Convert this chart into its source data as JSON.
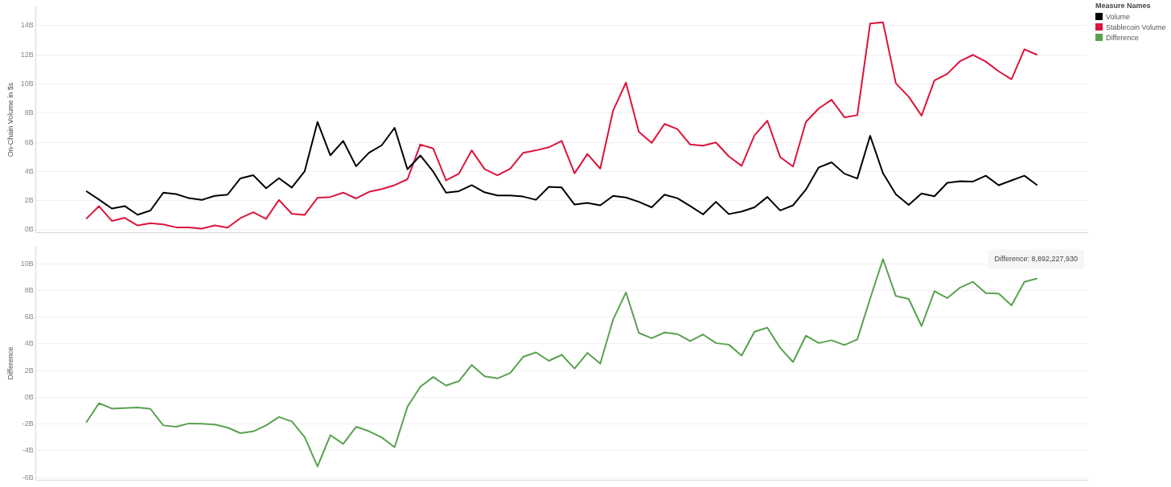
{
  "chart_data": [
    {
      "type": "line",
      "ylabel": "On-Chain Volume in $s",
      "legend_title": "Measure Names",
      "legend": "right",
      "grid": "y",
      "categories": [
        null,
        null,
        null,
        null,
        null,
        null,
        null,
        null,
        null,
        null,
        null,
        null,
        null,
        null,
        null,
        null,
        null,
        null,
        null,
        null,
        null,
        null,
        null,
        null,
        null,
        null,
        null,
        null,
        null,
        null,
        null,
        null,
        null,
        null,
        null,
        null,
        null,
        null,
        null,
        null,
        null,
        null,
        null,
        null,
        null,
        null,
        null,
        null,
        null,
        null,
        null,
        null,
        null,
        null,
        null,
        null,
        null,
        null,
        null,
        null,
        null,
        null,
        null,
        null,
        null,
        null,
        null,
        null,
        null,
        null,
        null,
        null,
        null,
        null,
        null
      ],
      "ylim": [
        -0.2,
        15.3
      ],
      "yticks": [
        {
          "value": 0,
          "label": "0B"
        },
        {
          "value": 2,
          "label": "2B"
        },
        {
          "value": 4,
          "label": "4B"
        },
        {
          "value": 6,
          "label": "6B"
        },
        {
          "value": 8,
          "label": "8B"
        },
        {
          "value": 10,
          "label": "10B"
        },
        {
          "value": 12,
          "label": "12B"
        },
        {
          "value": 14,
          "label": "14B"
        }
      ],
      "series": [
        {
          "name": "Volume",
          "color": "#000000",
          "values": [
            2.66,
            2.07,
            1.46,
            1.63,
            1.03,
            1.32,
            2.55,
            2.45,
            2.17,
            2.05,
            2.33,
            2.41,
            3.53,
            3.75,
            2.85,
            3.54,
            2.9,
            4.01,
            7.4,
            5.11,
            6.1,
            4.36,
            5.28,
            5.8,
            7.0,
            4.15,
            5.1,
            4.0,
            2.55,
            2.65,
            3.06,
            2.57,
            2.36,
            2.36,
            2.28,
            2.06,
            2.95,
            2.9,
            1.73,
            1.84,
            1.68,
            2.33,
            2.22,
            1.92,
            1.54,
            2.41,
            2.17,
            1.63,
            1.06,
            1.92,
            1.08,
            1.25,
            1.54,
            2.25,
            1.33,
            1.68,
            2.76,
            4.28,
            4.63,
            3.85,
            3.52,
            6.45,
            3.88,
            2.44,
            1.71,
            2.49,
            2.3,
            3.22,
            3.33,
            3.31,
            3.71,
            3.06,
            3.39,
            3.71,
            3.06
          ]
        },
        {
          "name": "Stablecoin Volume",
          "color": "#dc143c",
          "values": [
            0.75,
            1.62,
            0.61,
            0.82,
            0.3,
            0.45,
            0.37,
            0.17,
            0.17,
            0.08,
            0.3,
            0.15,
            0.8,
            1.2,
            0.75,
            2.05,
            1.1,
            1.02,
            2.2,
            2.25,
            2.55,
            2.15,
            2.6,
            2.8,
            3.06,
            3.47,
            5.85,
            5.58,
            3.39,
            3.85,
            5.45,
            4.17,
            3.74,
            4.2,
            5.28,
            5.45,
            5.66,
            6.1,
            3.88,
            5.2,
            4.2,
            8.18,
            10.1,
            6.72,
            5.96,
            7.26,
            6.91,
            5.85,
            5.77,
            5.99,
            5.04,
            4.39,
            6.48,
            7.48,
            4.99,
            4.34,
            7.4,
            8.32,
            8.92,
            7.72,
            7.86,
            14.15,
            14.23,
            10.05,
            9.13,
            7.83,
            10.24,
            10.7,
            11.57,
            12.0,
            11.54,
            10.87,
            10.33,
            12.38,
            12.0
          ]
        }
      ]
    },
    {
      "type": "line",
      "ylabel": "Difference",
      "legend": "right",
      "grid": "y",
      "categories": [
        null,
        null,
        null,
        null,
        null,
        null,
        null,
        null,
        null,
        null,
        null,
        null,
        null,
        null,
        null,
        null,
        null,
        null,
        null,
        null,
        null,
        null,
        null,
        null,
        null,
        null,
        null,
        null,
        null,
        null,
        null,
        null,
        null,
        null,
        null,
        null,
        null,
        null,
        null,
        null,
        null,
        null,
        null,
        null,
        null,
        null,
        null,
        null,
        null,
        null,
        null,
        null,
        null,
        null,
        null,
        null,
        null,
        null,
        null,
        null,
        null,
        null,
        null,
        null,
        null,
        null,
        null,
        null,
        null,
        null,
        null,
        null,
        null,
        null,
        null
      ],
      "ylim": [
        -6.2,
        11.3
      ],
      "yticks": [
        {
          "value": -6,
          "label": "-6B"
        },
        {
          "value": -4,
          "label": "-4B"
        },
        {
          "value": -2,
          "label": "-2B"
        },
        {
          "value": 0,
          "label": "0B"
        },
        {
          "value": 2,
          "label": "2B"
        },
        {
          "value": 4,
          "label": "4B"
        },
        {
          "value": 6,
          "label": "6B"
        },
        {
          "value": 8,
          "label": "8B"
        },
        {
          "value": 10,
          "label": "10B"
        }
      ],
      "annotations": [
        {
          "text": "Difference: 8,892,227,930",
          "y": 8.89
        }
      ],
      "series": [
        {
          "name": "Difference",
          "color": "#59a14f",
          "values": [
            -1.88,
            -0.44,
            -0.84,
            -0.8,
            -0.75,
            -0.86,
            -2.1,
            -2.2,
            -1.95,
            -1.97,
            -2.03,
            -2.26,
            -2.68,
            -2.55,
            -2.1,
            -1.47,
            -1.8,
            -2.97,
            -5.17,
            -2.83,
            -3.48,
            -2.2,
            -2.53,
            -3.0,
            -3.73,
            -0.7,
            0.79,
            1.52,
            0.88,
            1.21,
            2.42,
            1.58,
            1.42,
            1.82,
            3.03,
            3.36,
            2.73,
            3.18,
            2.15,
            3.33,
            2.52,
            5.82,
            7.85,
            4.82,
            4.42,
            4.85,
            4.73,
            4.21,
            4.7,
            4.06,
            3.94,
            3.12,
            4.91,
            5.21,
            3.7,
            2.64,
            4.61,
            4.06,
            4.27,
            3.91,
            4.33,
            7.39,
            10.33,
            7.58,
            7.36,
            5.33,
            7.94,
            7.42,
            8.21,
            8.64,
            7.79,
            7.76,
            6.88,
            8.64,
            8.89
          ]
        }
      ]
    }
  ]
}
